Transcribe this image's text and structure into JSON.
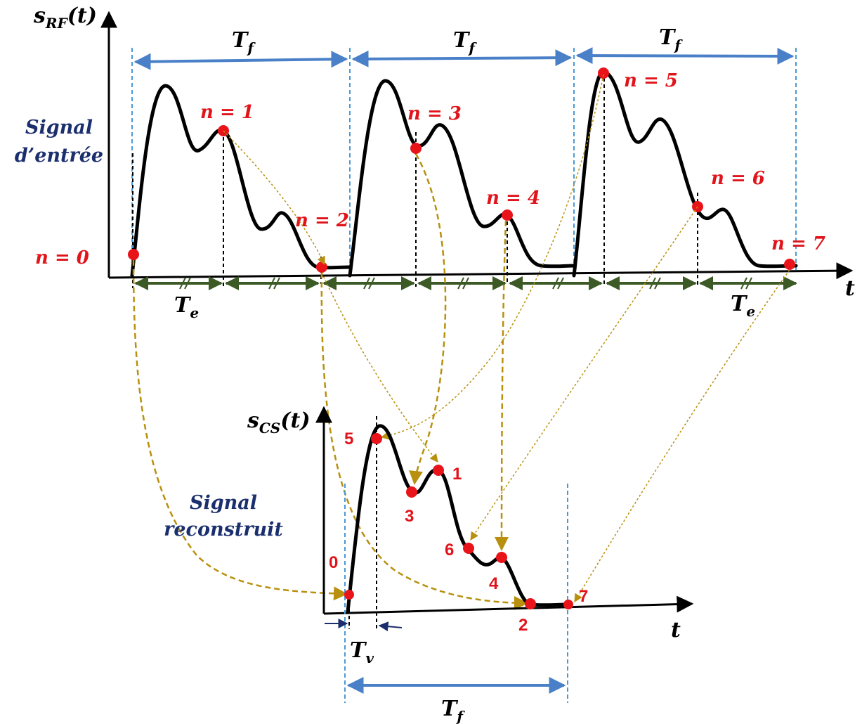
{
  "labels": {
    "y_top": "s",
    "y_top_sub": "RF",
    "y_top_arg": "(t)",
    "y_bottom": "s",
    "y_bottom_sub": "CS",
    "y_bottom_arg": "(t)",
    "x_axis": "t",
    "frame_period": "T",
    "frame_sub": "f",
    "sample_period": "T",
    "sample_sub": "e",
    "virtual_period": "T",
    "virtual_sub": "v",
    "input_signal_line1": "Signal",
    "input_signal_line2": "d’entrée",
    "output_signal_line1": "Signal",
    "output_signal_line2": "reconstruit"
  },
  "input_samples": [
    "n = 0",
    "n = 1",
    "n = 2",
    "n = 3",
    "n = 4",
    "n = 5",
    "n = 6",
    "n = 7"
  ],
  "reconstructed_samples": [
    "5",
    "1",
    "3",
    "6",
    "4",
    "0",
    "2",
    "7"
  ],
  "colors": {
    "signal": "#000000",
    "sample_dot": "#e8141a",
    "frame_arrow": "#4a80c8",
    "sample_arrow": "#3c5a26",
    "mapping_arrow": "#b8900e",
    "side_text": "#1b2f6e"
  }
}
